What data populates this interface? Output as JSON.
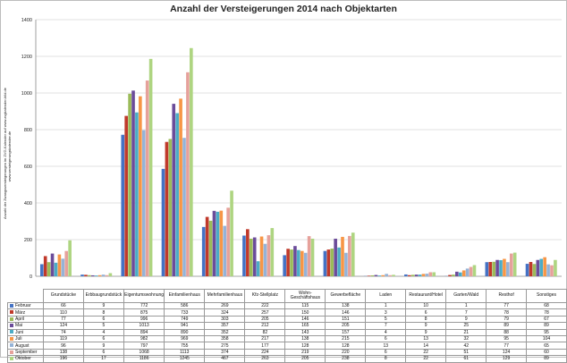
{
  "title": "Anzahl der Versteigerungen 2014 nach Objektarten",
  "ylabel_lines": [
    "Anzahl der Zwangsversteigerungen im ZVG-Kalender auf www.zvgkalender-bild.de",
    "www.versteigerungskalender.de"
  ],
  "chart_data": {
    "type": "bar",
    "ylim": [
      0,
      1400
    ],
    "yticks": [
      0,
      200,
      400,
      600,
      800,
      1000,
      1200,
      1400
    ],
    "grid": true,
    "legend": "data-table",
    "categories": [
      "Grundstücke",
      "Erbbaugrundstück",
      "Eigentumswohnung",
      "Einfamilienhaus",
      "Mehrfamilienhaus",
      "Kfz-Stellplatz",
      "Wohn-\nGeschäftshaus",
      "Gewerbefläche",
      "Laden",
      "Restaurant/Hotel",
      "Garten/Wald",
      "Resthof",
      "Sonstiges"
    ],
    "series": [
      {
        "name": "Februar",
        "color": "#4472c4",
        "values": [
          66,
          9,
          772,
          586,
          269,
          222,
          115,
          138,
          1,
          10,
          1,
          77,
          68
        ]
      },
      {
        "name": "März",
        "color": "#c0392b",
        "values": [
          110,
          8,
          875,
          733,
          324,
          257,
          150,
          146,
          3,
          6,
          7,
          78,
          78
        ]
      },
      {
        "name": "April",
        "color": "#9bbb59",
        "values": [
          77,
          6,
          996,
          749,
          303,
          205,
          146,
          151,
          5,
          8,
          9,
          79,
          67
        ]
      },
      {
        "name": "Mai",
        "color": "#6b4c9a",
        "values": [
          124,
          5,
          1013,
          941,
          357,
          212,
          165,
          205,
          7,
          9,
          25,
          89,
          89
        ]
      },
      {
        "name": "Juni",
        "color": "#4bacc6",
        "values": [
          74,
          4,
          894,
          890,
          352,
          82,
          143,
          157,
          4,
          9,
          21,
          88,
          95
        ]
      },
      {
        "name": "Juli",
        "color": "#f79646",
        "values": [
          119,
          6,
          982,
          969,
          358,
          217,
          138,
          215,
          6,
          13,
          32,
          95,
          104
        ]
      },
      {
        "name": "August",
        "color": "#95b3d7",
        "values": [
          96,
          9,
          797,
          755,
          275,
          177,
          128,
          128,
          13,
          14,
          42,
          77,
          65
        ]
      },
      {
        "name": "September",
        "color": "#e6a19b",
        "values": [
          138,
          6,
          1068,
          1113,
          374,
          224,
          219,
          220,
          6,
          22,
          51,
          124,
          60
        ]
      },
      {
        "name": "Oktober",
        "color": "#aed581",
        "values": [
          196,
          17,
          1186,
          1245,
          467,
          263,
          205,
          238,
          8,
          22,
          61,
          129,
          89
        ]
      }
    ]
  }
}
